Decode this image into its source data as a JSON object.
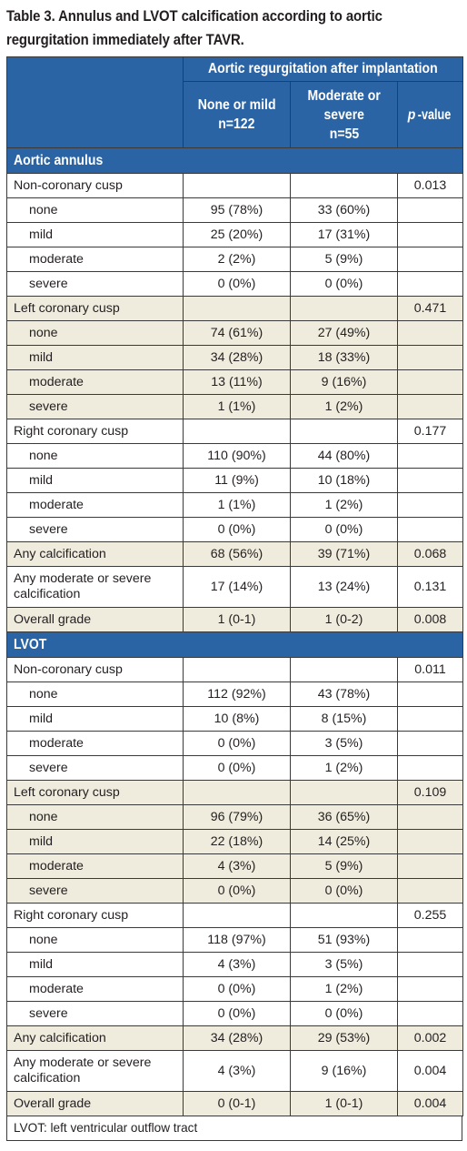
{
  "caption": {
    "line1": "Table 3. Annulus and LVOT calcification according to aortic",
    "line2": "regurgitation immediately after TAVR."
  },
  "header": {
    "group": "Aortic regurgitation after implantation",
    "col1_line1": "None or mild",
    "col1_line2": "n=122",
    "col2_line1": "Moderate or",
    "col2_line2": "severe",
    "col2_line3": "n=55",
    "pvalue_italic": "p",
    "pvalue_rest": "-value"
  },
  "sections": [
    {
      "title": "Aortic annulus",
      "rows": [
        {
          "label": "Non-coronary cusp",
          "indent": false,
          "a": "",
          "b": "",
          "p": "0.013",
          "shaded": false
        },
        {
          "label": "none",
          "indent": true,
          "a": "95 (78%)",
          "b": "33 (60%)",
          "p": "",
          "shaded": false
        },
        {
          "label": "mild",
          "indent": true,
          "a": "25 (20%)",
          "b": "17 (31%)",
          "p": "",
          "shaded": false
        },
        {
          "label": "moderate",
          "indent": true,
          "a": "2 (2%)",
          "b": "5 (9%)",
          "p": "",
          "shaded": false
        },
        {
          "label": "severe",
          "indent": true,
          "a": "0 (0%)",
          "b": "0 (0%)",
          "p": "",
          "shaded": false
        },
        {
          "label": "Left coronary cusp",
          "indent": false,
          "a": "",
          "b": "",
          "p": "0.471",
          "shaded": true
        },
        {
          "label": "none",
          "indent": true,
          "a": "74 (61%)",
          "b": "27 (49%)",
          "p": "",
          "shaded": true
        },
        {
          "label": "mild",
          "indent": true,
          "a": "34 (28%)",
          "b": "18 (33%)",
          "p": "",
          "shaded": true
        },
        {
          "label": "moderate",
          "indent": true,
          "a": "13 (11%)",
          "b": "9 (16%)",
          "p": "",
          "shaded": true
        },
        {
          "label": "severe",
          "indent": true,
          "a": "1 (1%)",
          "b": "1 (2%)",
          "p": "",
          "shaded": true
        },
        {
          "label": "Right coronary cusp",
          "indent": false,
          "a": "",
          "b": "",
          "p": "0.177",
          "shaded": false
        },
        {
          "label": "none",
          "indent": true,
          "a": "110 (90%)",
          "b": "44 (80%)",
          "p": "",
          "shaded": false
        },
        {
          "label": "mild",
          "indent": true,
          "a": "11 (9%)",
          "b": "10 (18%)",
          "p": "",
          "shaded": false
        },
        {
          "label": "moderate",
          "indent": true,
          "a": "1 (1%)",
          "b": "1 (2%)",
          "p": "",
          "shaded": false
        },
        {
          "label": "severe",
          "indent": true,
          "a": "0 (0%)",
          "b": "0 (0%)",
          "p": "",
          "shaded": false
        },
        {
          "label": "Any calcification",
          "indent": false,
          "a": "68 (56%)",
          "b": "39 (71%)",
          "p": "0.068",
          "shaded": true
        },
        {
          "label": "Any moderate or severe calcification",
          "indent": false,
          "a": "17 (14%)",
          "b": "13 (24%)",
          "p": "0.131",
          "shaded": false,
          "tall": true
        },
        {
          "label": "Overall grade",
          "indent": false,
          "a": "1 (0-1)",
          "b": "1 (0-2)",
          "p": "0.008",
          "shaded": true
        }
      ]
    },
    {
      "title": "LVOT",
      "rows": [
        {
          "label": "Non-coronary cusp",
          "indent": false,
          "a": "",
          "b": "",
          "p": "0.011",
          "shaded": false
        },
        {
          "label": "none",
          "indent": true,
          "a": "112 (92%)",
          "b": "43 (78%)",
          "p": "",
          "shaded": false
        },
        {
          "label": "mild",
          "indent": true,
          "a": "10 (8%)",
          "b": "8 (15%)",
          "p": "",
          "shaded": false
        },
        {
          "label": "moderate",
          "indent": true,
          "a": "0 (0%)",
          "b": "3 (5%)",
          "p": "",
          "shaded": false
        },
        {
          "label": "severe",
          "indent": true,
          "a": "0 (0%)",
          "b": "1 (2%)",
          "p": "",
          "shaded": false
        },
        {
          "label": "Left coronary cusp",
          "indent": false,
          "a": "",
          "b": "",
          "p": "0.109",
          "shaded": true
        },
        {
          "label": "none",
          "indent": true,
          "a": "96 (79%)",
          "b": "36 (65%)",
          "p": "",
          "shaded": true
        },
        {
          "label": "mild",
          "indent": true,
          "a": "22 (18%)",
          "b": "14 (25%)",
          "p": "",
          "shaded": true
        },
        {
          "label": "moderate",
          "indent": true,
          "a": "4 (3%)",
          "b": "5 (9%)",
          "p": "",
          "shaded": true
        },
        {
          "label": "severe",
          "indent": true,
          "a": "0 (0%)",
          "b": "0 (0%)",
          "p": "",
          "shaded": true
        },
        {
          "label": "Right coronary cusp",
          "indent": false,
          "a": "",
          "b": "",
          "p": "0.255",
          "shaded": false
        },
        {
          "label": "none",
          "indent": true,
          "a": "118 (97%)",
          "b": "51 (93%)",
          "p": "",
          "shaded": false
        },
        {
          "label": "mild",
          "indent": true,
          "a": "4 (3%)",
          "b": "3 (5%)",
          "p": "",
          "shaded": false
        },
        {
          "label": "moderate",
          "indent": true,
          "a": "0 (0%)",
          "b": "1 (2%)",
          "p": "",
          "shaded": false
        },
        {
          "label": "severe",
          "indent": true,
          "a": "0 (0%)",
          "b": "0 (0%)",
          "p": "",
          "shaded": false
        },
        {
          "label": "Any calcification",
          "indent": false,
          "a": "34 (28%)",
          "b": "29 (53%)",
          "p": "0.002",
          "shaded": true
        },
        {
          "label": "Any moderate or severe calcification",
          "indent": false,
          "a": "4 (3%)",
          "b": "9 (16%)",
          "p": "0.004",
          "shaded": false,
          "tall": true
        },
        {
          "label": "Overall grade",
          "indent": false,
          "a": "0 (0-1)",
          "b": "1 (0-1)",
          "p": "0.004",
          "shaded": true
        }
      ]
    }
  ],
  "footnote": "LVOT: left ventricular outflow tract",
  "colors": {
    "header_bg": "#2b64a5",
    "shade_bg": "#efebdd",
    "text": "#231f20"
  }
}
